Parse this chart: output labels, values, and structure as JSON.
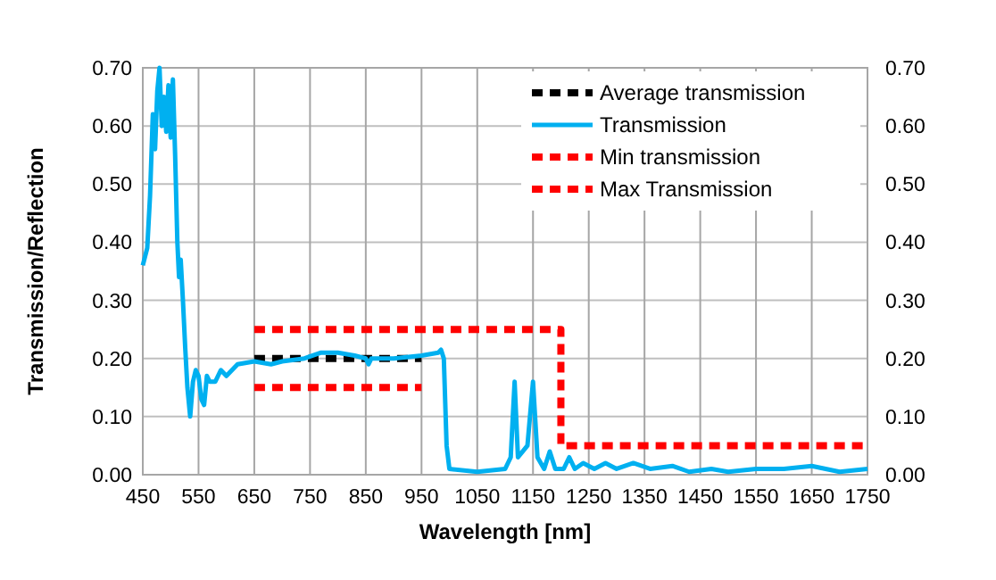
{
  "chart_data": {
    "type": "line",
    "xlabel": "Wavelength [nm]",
    "ylabel": "Transmission/Reflection",
    "xlim": [
      450,
      1750
    ],
    "xticks": [
      450,
      550,
      650,
      750,
      850,
      950,
      1050,
      1150,
      1250,
      1350,
      1450,
      1550,
      1650,
      1750
    ],
    "ylim": [
      0,
      0.7
    ],
    "yticks": [
      {
        "value": 0,
        "label": "0.00"
      },
      {
        "value": 0.1,
        "label": "0.10"
      },
      {
        "value": 0.2,
        "label": "0.20"
      },
      {
        "value": 0.3,
        "label": "0.30"
      },
      {
        "value": 0.4,
        "label": "0.40"
      },
      {
        "value": 0.5,
        "label": "0.50"
      },
      {
        "value": 0.6,
        "label": "0.60"
      },
      {
        "value": 0.7,
        "label": "0.70"
      }
    ],
    "y2lim": [
      0,
      0.7
    ],
    "y2ticks": [
      {
        "value": 0,
        "label": "0.00"
      },
      {
        "value": 0.1,
        "label": "0.10"
      },
      {
        "value": 0.2,
        "label": "0.20"
      },
      {
        "value": 0.3,
        "label": "0.30"
      },
      {
        "value": 0.4,
        "label": "0.40"
      },
      {
        "value": 0.5,
        "label": "0.50"
      },
      {
        "value": 0.6,
        "label": "0.60"
      },
      {
        "value": 0.7,
        "label": "0.70"
      }
    ],
    "grid": true,
    "legend": "top right",
    "series": [
      {
        "name": "Average transmission",
        "color": "#000000",
        "line_style": "dashed",
        "x": [
          650,
          950
        ],
        "values": [
          0.2,
          0.2
        ]
      },
      {
        "name": "Transmission",
        "color": "#00b0f0",
        "line_style": "solid",
        "x": [
          450,
          458,
          463,
          468,
          472,
          476,
          480,
          484,
          488,
          492,
          496,
          500,
          504,
          508,
          512,
          515,
          518,
          522,
          526,
          530,
          535,
          540,
          545,
          550,
          555,
          560,
          565,
          570,
          580,
          590,
          600,
          620,
          650,
          680,
          700,
          740,
          770,
          800,
          830,
          850,
          855,
          860,
          900,
          950,
          980,
          985,
          990,
          995,
          1000,
          1050,
          1100,
          1110,
          1117,
          1123,
          1140,
          1150,
          1158,
          1170,
          1180,
          1190,
          1205,
          1215,
          1225,
          1240,
          1260,
          1280,
          1300,
          1330,
          1360,
          1400,
          1430,
          1470,
          1500,
          1550,
          1600,
          1650,
          1700,
          1750
        ],
        "values": [
          0.36,
          0.39,
          0.48,
          0.62,
          0.56,
          0.66,
          0.7,
          0.6,
          0.65,
          0.59,
          0.67,
          0.58,
          0.68,
          0.55,
          0.4,
          0.34,
          0.37,
          0.3,
          0.22,
          0.15,
          0.1,
          0.16,
          0.18,
          0.17,
          0.13,
          0.12,
          0.17,
          0.16,
          0.16,
          0.18,
          0.17,
          0.19,
          0.195,
          0.19,
          0.195,
          0.2,
          0.21,
          0.21,
          0.205,
          0.2,
          0.19,
          0.2,
          0.2,
          0.205,
          0.21,
          0.215,
          0.2,
          0.05,
          0.01,
          0.005,
          0.01,
          0.03,
          0.16,
          0.03,
          0.05,
          0.16,
          0.03,
          0.01,
          0.04,
          0.01,
          0.01,
          0.03,
          0.01,
          0.02,
          0.01,
          0.02,
          0.01,
          0.02,
          0.01,
          0.015,
          0.005,
          0.01,
          0.005,
          0.01,
          0.01,
          0.015,
          0.005,
          0.01
        ]
      },
      {
        "name": "Min transmission",
        "color": "#ff0000",
        "line_style": "dashed",
        "x": [
          650,
          950
        ],
        "values": [
          0.15,
          0.15
        ]
      },
      {
        "name": "Max Transmission",
        "color": "#ff0000",
        "line_style": "dashed",
        "x": [
          650,
          1200,
          1200,
          1750
        ],
        "values": [
          0.25,
          0.25,
          0.05,
          0.05
        ]
      }
    ]
  }
}
